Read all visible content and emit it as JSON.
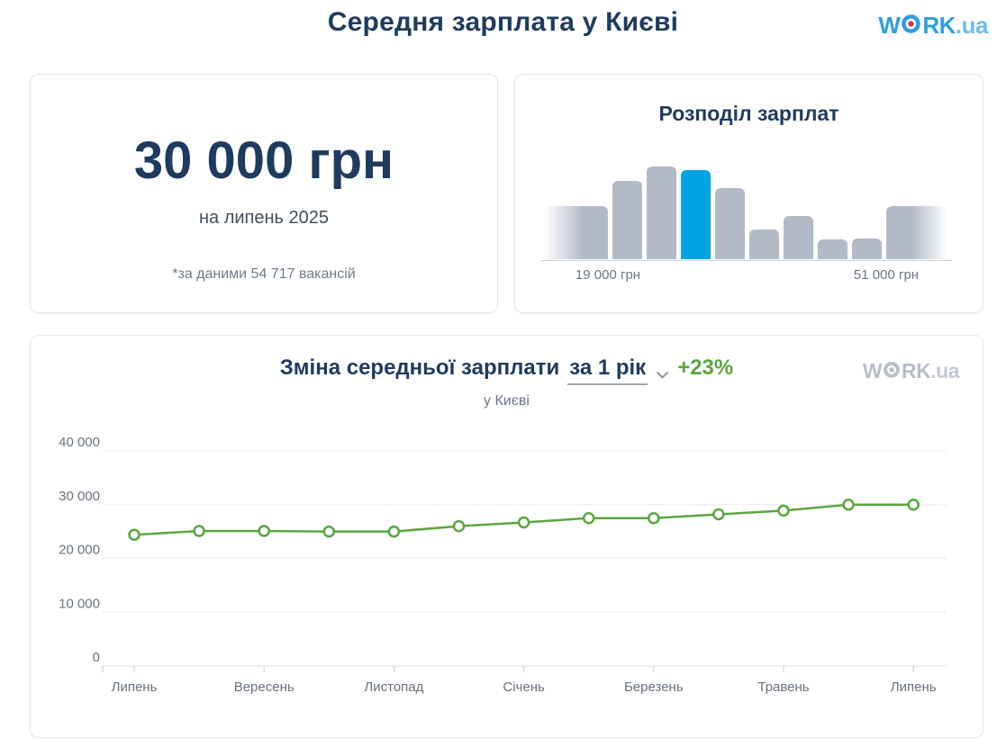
{
  "page": {
    "title": "Середня зарплата у Києві"
  },
  "logo": {
    "w": "W",
    "rk": "RK",
    "ua": ".ua"
  },
  "summary_card": {
    "amount": "30 000 грн",
    "period": "на липень 2025",
    "footnote": "*за даними 54 717 вакансій"
  },
  "colors": {
    "navy_text": "#1e3b5e",
    "brand_blue": "#2d9fe0",
    "brand_dot_pink": "#d6336c",
    "watermark_gray": "#b7bec9",
    "bar_gray": "#b3bac7",
    "highlight_blue": "#00a3e4",
    "line_green": "#5ca53f",
    "muted_label": "#6b7684"
  },
  "chart_data": [
    {
      "id": "salary-distribution",
      "type": "bar",
      "title": "Розподіл зарплат",
      "x_left_label": "19 000 грн",
      "x_right_label": "51 000 грн",
      "relative_heights_pct": [
        57,
        84,
        100,
        96,
        77,
        32,
        47,
        21,
        22,
        57
      ],
      "highlight_index": 3,
      "edge_bars_faded": true,
      "bar_color": "#b3bac7",
      "highlight_color": "#00a3e4"
    },
    {
      "id": "salary-trend",
      "type": "line",
      "title_prefix": "Зміна середньої зарплати",
      "period_selector": "за 1 рік",
      "change_label": "+23%",
      "subtitle": "у Києві",
      "values": [
        24400,
        25100,
        25100,
        25000,
        25000,
        26000,
        26700,
        27500,
        27500,
        28200,
        28900,
        30000,
        30000
      ],
      "x_ticks": [
        {
          "label": "Липень",
          "index": 0
        },
        {
          "label": "Вересень",
          "index": 2
        },
        {
          "label": "Листопад",
          "index": 4
        },
        {
          "label": "Січень",
          "index": 6
        },
        {
          "label": "Березень",
          "index": 8
        },
        {
          "label": "Травень",
          "index": 10
        },
        {
          "label": "Липень",
          "index": 12
        }
      ],
      "y_ticks": [
        {
          "label": "40 000",
          "value": 40000
        },
        {
          "label": "30 000",
          "value": 30000
        },
        {
          "label": "20 000",
          "value": 20000
        },
        {
          "label": "10 000",
          "value": 10000
        },
        {
          "label": "0",
          "value": 0
        }
      ],
      "ylim": [
        0,
        40000
      ],
      "grid": true,
      "line_color": "#5ca53f",
      "marker": "open-circle"
    }
  ]
}
